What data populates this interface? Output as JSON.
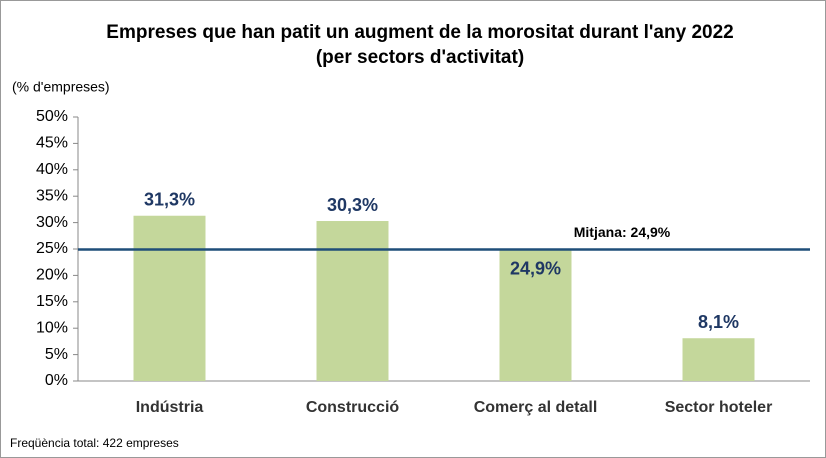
{
  "chart_data": {
    "type": "bar",
    "title": "Empreses que han patit un augment de la morositat durant l'any 2022",
    "subtitle": "(per sectors d'activitat)",
    "y_label": "(% d'empreses)",
    "note": "Freqüència total: 422 empreses",
    "categories": [
      "Indústria",
      "Construcció",
      "Comerç al detall",
      "Sector hoteler"
    ],
    "values": [
      31.3,
      30.3,
      24.9,
      8.1
    ],
    "value_labels": [
      "31,3%",
      "30,3%",
      "24,9%",
      "8,1%"
    ],
    "color": "#c4d79b",
    "mean": {
      "value": 24.9,
      "label": "Mitjana: 24,9%",
      "color": "#1f4e79"
    },
    "ylim": [
      0,
      50
    ],
    "yticks": [
      {
        "value": 0,
        "label": "0%"
      },
      {
        "value": 5,
        "label": "5%"
      },
      {
        "value": 10,
        "label": "10%"
      },
      {
        "value": 15,
        "label": "15%"
      },
      {
        "value": 20,
        "label": "20%"
      },
      {
        "value": 25,
        "label": "25%"
      },
      {
        "value": 30,
        "label": "30%"
      },
      {
        "value": 35,
        "label": "35%"
      },
      {
        "value": 40,
        "label": "40%"
      },
      {
        "value": 45,
        "label": "45%"
      },
      {
        "value": 50,
        "label": "50%"
      }
    ],
    "grid": false
  }
}
